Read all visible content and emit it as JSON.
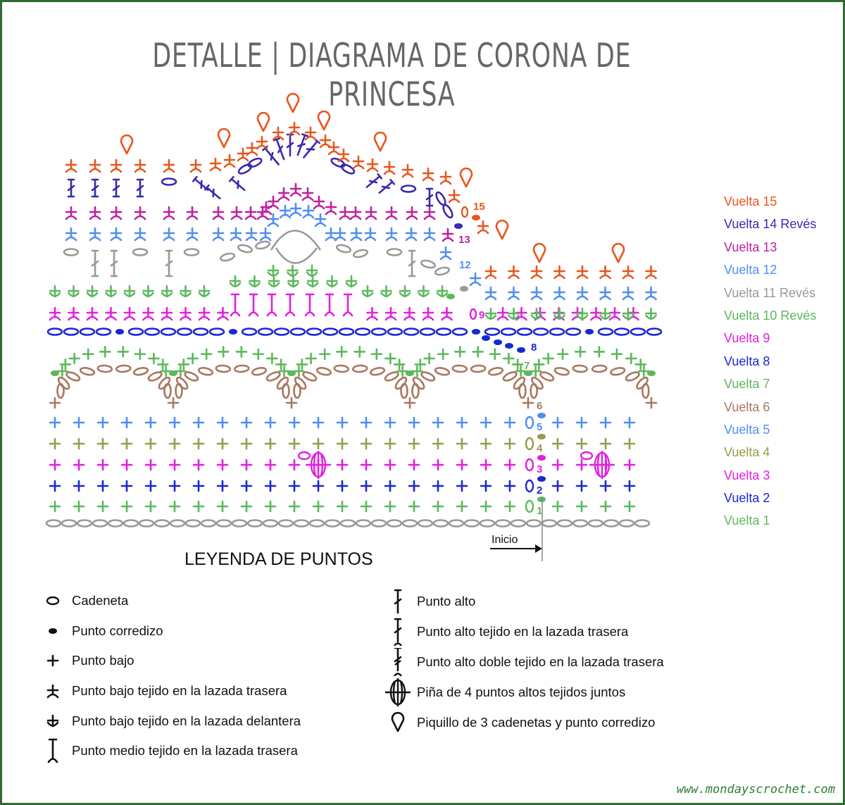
{
  "title": "DETALLE | DIAGRAMA DE CORONA DE PRINCESA",
  "start_label": "Inicio",
  "website": "www.mondayscrochet.com",
  "colors": {
    "r1": "#5cb85c",
    "r2": "#1a28d0",
    "r3": "#e020e0",
    "r4": "#9a9a4e",
    "r5": "#4f8ef0",
    "r6": "#a87860",
    "r7": "#5cb85c",
    "r8": "#1a28d0",
    "r9": "#e020e0",
    "r10": "#5cb85c",
    "r11": "#999999",
    "r12": "#4f8ef0",
    "r13": "#c020a0",
    "r14": "#3a2ab0",
    "r15": "#e8561e",
    "frame": "#2e6b2e",
    "title": "#666666"
  },
  "round_markers": [
    "1",
    "2",
    "3",
    "4",
    "5",
    "6",
    "7",
    "8",
    "9",
    "12",
    "13",
    "15"
  ],
  "rounds": [
    {
      "label": "Vuelta 15",
      "color": "#e8561e"
    },
    {
      "label": "Vuelta 14 Revés",
      "color": "#3a2ab0"
    },
    {
      "label": "Vuelta 13",
      "color": "#c020a0"
    },
    {
      "label": "Vuelta 12",
      "color": "#4f8ef0"
    },
    {
      "label": "Vuelta 11 Revés",
      "color": "#999999"
    },
    {
      "label": "Vuelta 10 Revés",
      "color": "#5cb85c"
    },
    {
      "label": "Vuelta 9",
      "color": "#e020e0"
    },
    {
      "label": "Vuelta 8",
      "color": "#1a28d0"
    },
    {
      "label": "Vuelta 7",
      "color": "#5cb85c"
    },
    {
      "label": "Vuelta 6",
      "color": "#a87860"
    },
    {
      "label": "Vuelta 5",
      "color": "#4f8ef0"
    },
    {
      "label": "Vuelta 4",
      "color": "#9a9a4e"
    },
    {
      "label": "Vuelta 3",
      "color": "#e020e0"
    },
    {
      "label": "Vuelta 2",
      "color": "#1a28d0"
    },
    {
      "label": "Vuelta 1",
      "color": "#5cb85c"
    }
  ],
  "legend": {
    "title": "LEYENDA DE PUNTOS",
    "left": [
      {
        "icon": "chain-icon",
        "label": "Cadeneta"
      },
      {
        "icon": "slip-stitch-icon",
        "label": "Punto corredizo"
      },
      {
        "icon": "single-crochet-icon",
        "label": "Punto bajo"
      },
      {
        "icon": "sc-back-loop-icon",
        "label": "Punto bajo tejido en la lazada trasera"
      },
      {
        "icon": "sc-front-loop-icon",
        "label": "Punto bajo tejido en la lazada delantera"
      },
      {
        "icon": "hdc-back-loop-icon",
        "label": "Punto medio tejido en la lazada trasera"
      }
    ],
    "right": [
      {
        "icon": "double-crochet-icon",
        "label": "Punto alto"
      },
      {
        "icon": "dc-back-loop-icon",
        "label": "Punto alto tejido en la lazada trasera"
      },
      {
        "icon": "treble-back-loop-icon",
        "label": "Punto alto doble tejido en la lazada trasera"
      },
      {
        "icon": "pineapple-4dc-icon",
        "label": "Piña de 4 puntos altos tejidos juntos"
      },
      {
        "icon": "picot-icon",
        "label": "Piquillo de 3 cadenetas y punto corredizo"
      }
    ]
  }
}
